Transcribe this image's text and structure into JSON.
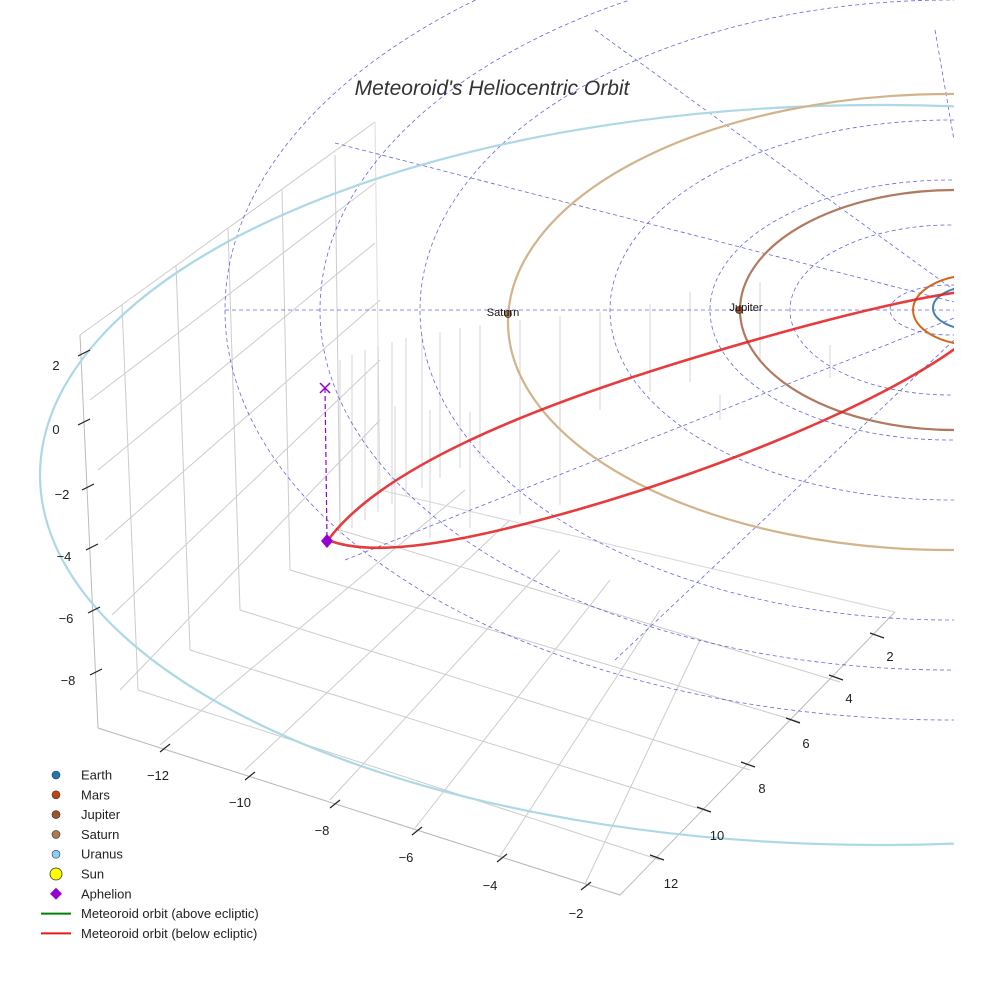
{
  "chart_data": {
    "type": "3d-orbit",
    "title": "Meteoroid's Heliocentric Orbit",
    "axes": {
      "x": {
        "ticks": [
          -12,
          -10,
          -8,
          -6,
          -4,
          -2
        ],
        "range": [
          -13,
          -1.5
        ]
      },
      "y": {
        "ticks": [
          2,
          4,
          6,
          8,
          10,
          12
        ],
        "range": [
          1,
          13
        ]
      },
      "z": {
        "ticks": [
          2,
          0,
          -2,
          -4,
          -6,
          -8
        ],
        "range": [
          -9,
          3
        ]
      }
    },
    "planets": [
      {
        "name": "Earth",
        "color": "#1f77b4",
        "label_shown": false
      },
      {
        "name": "Mars",
        "color": "#c1440e",
        "label_shown": false
      },
      {
        "name": "Jupiter",
        "color": "#a0522d",
        "label_shown": true
      },
      {
        "name": "Saturn",
        "color": "#b07a55",
        "label_shown": true
      },
      {
        "name": "Uranus",
        "color": "#87cefa",
        "label_shown": false
      }
    ],
    "orbit_colors": {
      "jupiter": "#b07a60",
      "saturn": "#d2b48c",
      "uranus": "#add8e6",
      "mars": "#d2691e",
      "earth": "#4682b4"
    },
    "meteoroid": {
      "color_above": "#008000",
      "color_below": "#e31a1c",
      "aphelion_color": "#9400d3"
    },
    "legend": [
      {
        "label": "Earth",
        "marker": "circle",
        "color": "#1f77b4"
      },
      {
        "label": "Mars",
        "marker": "circle",
        "color": "#c1440e"
      },
      {
        "label": "Jupiter",
        "marker": "circle",
        "color": "#a0522d"
      },
      {
        "label": "Saturn",
        "marker": "circle",
        "color": "#b07a55"
      },
      {
        "label": "Uranus",
        "marker": "circle",
        "color": "#87cefa"
      },
      {
        "label": "Sun",
        "marker": "big-circle",
        "color": "#ffff00"
      },
      {
        "label": "Aphelion",
        "marker": "diamond",
        "color": "#9400d3"
      },
      {
        "label": "Meteoroid orbit (above ecliptic)",
        "marker": "line",
        "color": "#008000"
      },
      {
        "label": "Meteoroid orbit (below ecliptic)",
        "marker": "line",
        "color": "#e31a1c"
      }
    ]
  }
}
